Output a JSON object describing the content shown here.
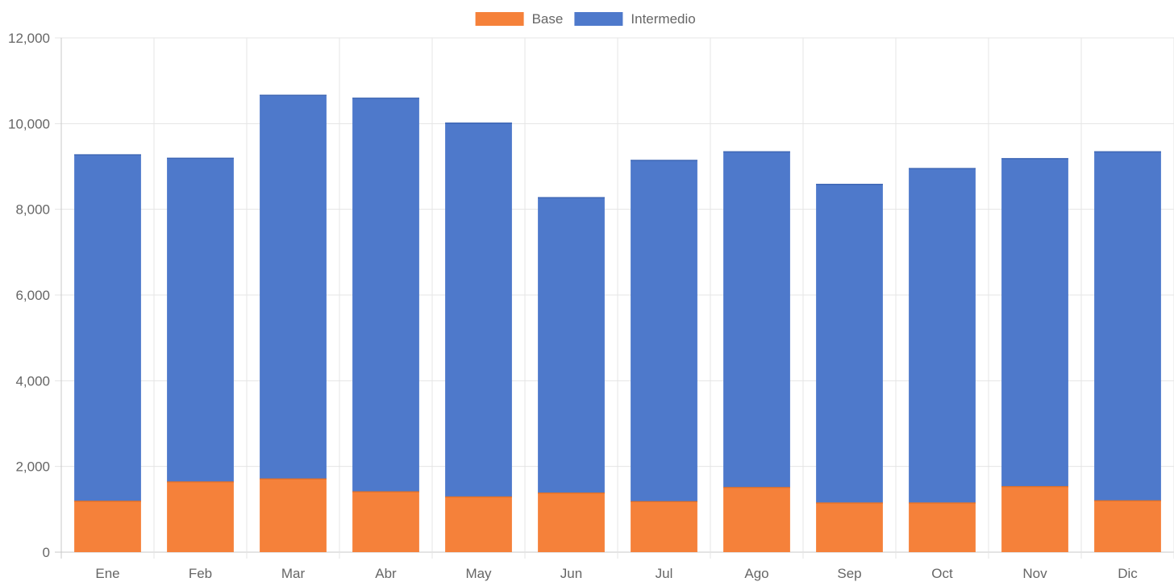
{
  "chart_data": {
    "type": "bar",
    "stacked": true,
    "categories": [
      "Ene",
      "Feb",
      "Mar",
      "Abr",
      "May",
      "Jun",
      "Jul",
      "Ago",
      "Sep",
      "Oct",
      "Nov",
      "Dic"
    ],
    "series": [
      {
        "name": "Base",
        "color": "#f5813a",
        "values": [
          1200,
          1650,
          1720,
          1420,
          1300,
          1390,
          1190,
          1520,
          1160,
          1160,
          1540,
          1210
        ]
      },
      {
        "name": "Intermedio",
        "color": "#4e79cb",
        "values": [
          8080,
          7550,
          8950,
          9180,
          8720,
          6890,
          7960,
          7830,
          7430,
          7800,
          7650,
          8140
        ]
      }
    ],
    "ylim": [
      0,
      12000
    ],
    "yticks": [
      "0",
      "2,000",
      "4,000",
      "6,000",
      "8,000",
      "10,000",
      "12,000"
    ],
    "grid": true,
    "legend_position": "top-center"
  }
}
